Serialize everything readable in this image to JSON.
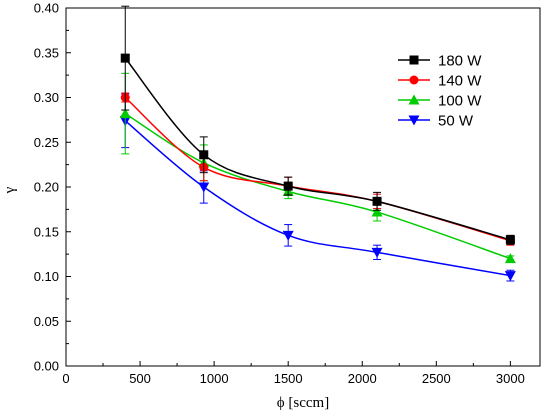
{
  "chart_data": {
    "type": "line",
    "xlabel": "ϕ [sccm]",
    "ylabel": "γ",
    "xlim": [
      0,
      3200
    ],
    "ylim": [
      0.0,
      0.4
    ],
    "xticks": [
      "0",
      "500",
      "1000",
      "1500",
      "2000",
      "2500",
      "3000"
    ],
    "yticks": [
      "0.00",
      "0.05",
      "0.10",
      "0.15",
      "0.20",
      "0.25",
      "0.30",
      "0.35",
      "0.40"
    ],
    "grid": false,
    "legend_position": "top-right",
    "series": [
      {
        "name": "180 W",
        "color": "#000000",
        "marker": "square",
        "x": [
          400,
          930,
          1500,
          2100,
          3000
        ],
        "y": [
          0.344,
          0.236,
          0.201,
          0.184,
          0.141
        ],
        "err": [
          0.058,
          0.02,
          0.01,
          0.01,
          0.005
        ]
      },
      {
        "name": "140 W",
        "color": "#ff0000",
        "marker": "circle",
        "x": [
          400,
          930,
          1500,
          2100,
          3000
        ],
        "y": [
          0.3,
          0.222,
          0.201,
          0.184,
          0.14
        ],
        "err": [
          0.005,
          0.015,
          0.01,
          0.008,
          0.005
        ]
      },
      {
        "name": "100 W",
        "color": "#00cc00",
        "marker": "triangle-up",
        "x": [
          400,
          930,
          1500,
          2100,
          3000
        ],
        "y": [
          0.282,
          0.227,
          0.195,
          0.172,
          0.12
        ],
        "err": [
          0.045,
          0.02,
          0.008,
          0.01,
          0.003
        ]
      },
      {
        "name": "50 W",
        "color": "#0000ff",
        "marker": "triangle-down",
        "x": [
          400,
          930,
          1500,
          2100,
          3000
        ],
        "y": [
          0.274,
          0.2,
          0.146,
          0.127,
          0.101
        ],
        "err": [
          0.03,
          0.018,
          0.012,
          0.008,
          0.006
        ]
      }
    ]
  }
}
